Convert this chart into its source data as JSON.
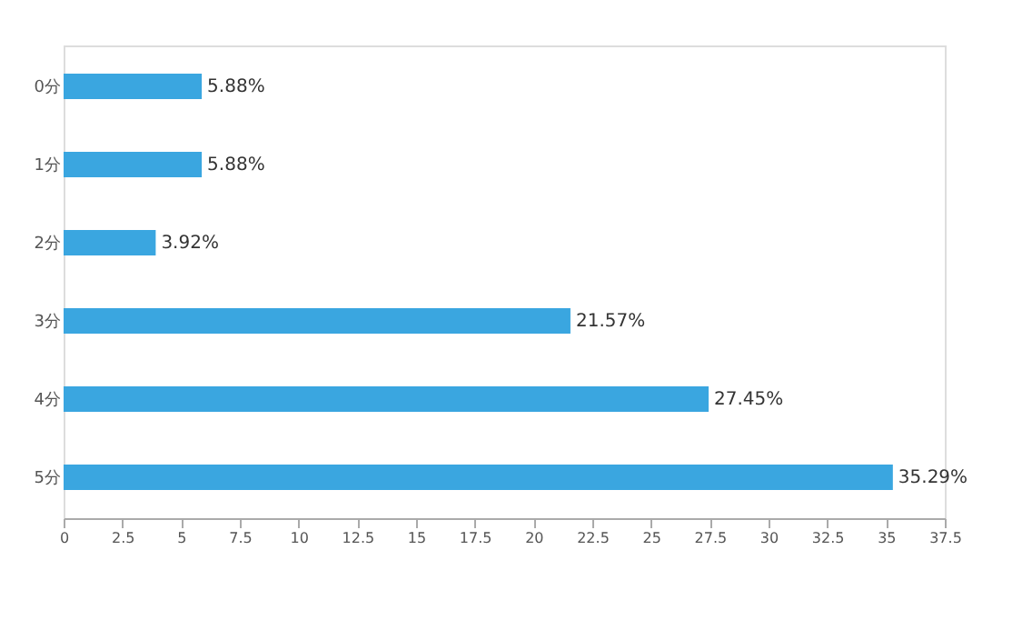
{
  "chart_data": {
    "type": "bar",
    "orientation": "horizontal",
    "categories": [
      "0分",
      "1分",
      "2分",
      "3分",
      "4分",
      "5分"
    ],
    "values": [
      5.88,
      5.88,
      3.92,
      21.57,
      27.45,
      35.29
    ],
    "value_labels": [
      "5.88%",
      "5.88%",
      "3.92%",
      "21.57%",
      "27.45%",
      "35.29%"
    ],
    "color": "#3aa6e0",
    "xlim": [
      0,
      37.5
    ],
    "xticks": [
      0,
      2.5,
      5,
      7.5,
      10,
      12.5,
      15,
      17.5,
      20,
      22.5,
      25,
      27.5,
      30,
      32.5,
      35,
      37.5
    ],
    "grid": false
  }
}
